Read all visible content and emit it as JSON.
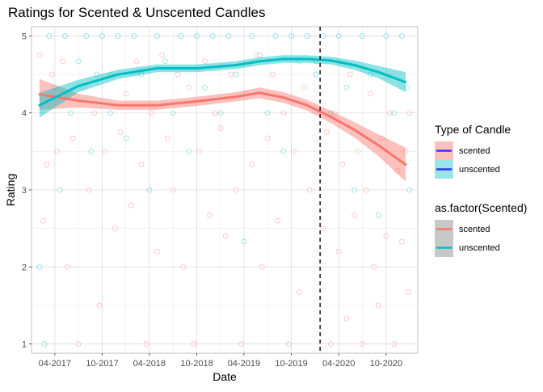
{
  "chart_data": {
    "type": "scatter",
    "title": "Ratings for Scented & Unscented Candles",
    "xlabel": "Date",
    "ylabel": "Rating",
    "x_range": [
      "2017-01-01",
      "2021-01-31"
    ],
    "ylim": [
      0.88,
      5.12
    ],
    "x_ticks": [
      {
        "date": "2017-04-01",
        "label": "04-2017"
      },
      {
        "date": "2017-10-01",
        "label": "10-2017"
      },
      {
        "date": "2018-04-01",
        "label": "04-2018"
      },
      {
        "date": "2018-10-01",
        "label": "10-2018"
      },
      {
        "date": "2019-04-01",
        "label": "04-2019"
      },
      {
        "date": "2019-10-01",
        "label": "10-2019"
      },
      {
        "date": "2020-04-01",
        "label": "04-2020"
      },
      {
        "date": "2020-10-01",
        "label": "10-2020"
      }
    ],
    "y_ticks": [
      1,
      2,
      3,
      4,
      5
    ],
    "grid": true,
    "vline": {
      "date": "2020-01-20",
      "style": "dashed"
    },
    "colors": {
      "scented": "#F8766D",
      "unscented": "#00BFC4",
      "legend_line": "#3333FF"
    },
    "series": [
      {
        "name": "scented",
        "smooth": [
          {
            "date": "2017-02-01",
            "y": 4.24
          },
          {
            "date": "2017-07-01",
            "y": 4.16
          },
          {
            "date": "2017-12-01",
            "y": 4.1
          },
          {
            "date": "2018-05-01",
            "y": 4.1
          },
          {
            "date": "2018-10-01",
            "y": 4.15
          },
          {
            "date": "2019-03-01",
            "y": 4.21
          },
          {
            "date": "2019-06-01",
            "y": 4.26
          },
          {
            "date": "2019-09-01",
            "y": 4.2
          },
          {
            "date": "2019-12-01",
            "y": 4.1
          },
          {
            "date": "2020-03-01",
            "y": 3.95
          },
          {
            "date": "2020-06-01",
            "y": 3.78
          },
          {
            "date": "2020-09-01",
            "y": 3.58
          },
          {
            "date": "2020-12-15",
            "y": 3.33
          }
        ],
        "band_halfwidth": [
          0.2,
          0.09,
          0.06,
          0.06,
          0.06,
          0.06,
          0.07,
          0.07,
          0.07,
          0.08,
          0.1,
          0.14,
          0.22
        ]
      },
      {
        "name": "unscented",
        "smooth": [
          {
            "date": "2017-02-01",
            "y": 4.1
          },
          {
            "date": "2017-07-01",
            "y": 4.35
          },
          {
            "date": "2017-12-01",
            "y": 4.5
          },
          {
            "date": "2018-05-01",
            "y": 4.58
          },
          {
            "date": "2018-10-01",
            "y": 4.58
          },
          {
            "date": "2019-03-01",
            "y": 4.62
          },
          {
            "date": "2019-06-01",
            "y": 4.67
          },
          {
            "date": "2019-09-01",
            "y": 4.7
          },
          {
            "date": "2019-12-01",
            "y": 4.7
          },
          {
            "date": "2020-03-01",
            "y": 4.68
          },
          {
            "date": "2020-06-01",
            "y": 4.62
          },
          {
            "date": "2020-09-01",
            "y": 4.53
          },
          {
            "date": "2020-12-15",
            "y": 4.4
          }
        ],
        "band_halfwidth": [
          0.16,
          0.08,
          0.06,
          0.05,
          0.05,
          0.05,
          0.05,
          0.05,
          0.05,
          0.05,
          0.06,
          0.08,
          0.13
        ]
      }
    ],
    "points": {
      "scented": [
        {
          "date": "2017-02-01",
          "y": 4.75
        },
        {
          "date": "2017-02-15",
          "y": 2.6
        },
        {
          "date": "2017-03-01",
          "y": 3.33
        },
        {
          "date": "2017-03-20",
          "y": 4.5
        },
        {
          "date": "2017-04-10",
          "y": 3.5
        },
        {
          "date": "2017-05-01",
          "y": 4.67
        },
        {
          "date": "2017-05-20",
          "y": 2.0
        },
        {
          "date": "2017-06-10",
          "y": 3.67
        },
        {
          "date": "2017-07-01",
          "y": 1.0
        },
        {
          "date": "2017-07-20",
          "y": 4.33
        },
        {
          "date": "2017-08-10",
          "y": 3.0
        },
        {
          "date": "2017-09-01",
          "y": 4.0
        },
        {
          "date": "2017-09-20",
          "y": 1.5
        },
        {
          "date": "2017-10-10",
          "y": 3.5
        },
        {
          "date": "2017-11-01",
          "y": 4.5
        },
        {
          "date": "2017-11-20",
          "y": 2.5
        },
        {
          "date": "2017-12-10",
          "y": 3.75
        },
        {
          "date": "2018-01-01",
          "y": 4.25
        },
        {
          "date": "2018-01-20",
          "y": 2.8
        },
        {
          "date": "2018-02-10",
          "y": 4.67
        },
        {
          "date": "2018-03-01",
          "y": 3.33
        },
        {
          "date": "2018-03-20",
          "y": 1.0
        },
        {
          "date": "2018-04-10",
          "y": 4.0
        },
        {
          "date": "2018-05-01",
          "y": 2.2
        },
        {
          "date": "2018-05-20",
          "y": 4.75
        },
        {
          "date": "2018-06-10",
          "y": 3.67
        },
        {
          "date": "2018-07-01",
          "y": 3.0
        },
        {
          "date": "2018-07-20",
          "y": 4.5
        },
        {
          "date": "2018-08-10",
          "y": 2.0
        },
        {
          "date": "2018-09-01",
          "y": 4.33
        },
        {
          "date": "2018-09-20",
          "y": 1.0
        },
        {
          "date": "2018-10-10",
          "y": 3.5
        },
        {
          "date": "2018-11-01",
          "y": 4.67
        },
        {
          "date": "2018-11-20",
          "y": 2.67
        },
        {
          "date": "2018-12-10",
          "y": 4.0
        },
        {
          "date": "2019-01-01",
          "y": 3.8
        },
        {
          "date": "2019-01-20",
          "y": 2.4
        },
        {
          "date": "2019-02-10",
          "y": 4.5
        },
        {
          "date": "2019-03-01",
          "y": 3.0
        },
        {
          "date": "2019-03-20",
          "y": 1.0
        },
        {
          "date": "2019-04-10",
          "y": 4.25
        },
        {
          "date": "2019-05-01",
          "y": 3.33
        },
        {
          "date": "2019-05-20",
          "y": 4.75
        },
        {
          "date": "2019-06-10",
          "y": 2.0
        },
        {
          "date": "2019-07-01",
          "y": 3.67
        },
        {
          "date": "2019-07-20",
          "y": 4.5
        },
        {
          "date": "2019-08-10",
          "y": 2.6
        },
        {
          "date": "2019-09-01",
          "y": 4.0
        },
        {
          "date": "2019-09-20",
          "y": 1.0
        },
        {
          "date": "2019-10-10",
          "y": 3.5
        },
        {
          "date": "2019-11-01",
          "y": 1.67
        },
        {
          "date": "2019-11-20",
          "y": 4.33
        },
        {
          "date": "2019-12-10",
          "y": 3.0
        },
        {
          "date": "2020-01-05",
          "y": 4.67
        },
        {
          "date": "2020-02-01",
          "y": 2.5
        },
        {
          "date": "2020-02-15",
          "y": 3.75
        },
        {
          "date": "2020-03-01",
          "y": 1.0
        },
        {
          "date": "2020-03-15",
          "y": 4.0
        },
        {
          "date": "2020-04-01",
          "y": 2.2
        },
        {
          "date": "2020-04-15",
          "y": 3.33
        },
        {
          "date": "2020-05-01",
          "y": 1.33
        },
        {
          "date": "2020-05-15",
          "y": 4.5
        },
        {
          "date": "2020-06-01",
          "y": 2.67
        },
        {
          "date": "2020-06-15",
          "y": 3.5
        },
        {
          "date": "2020-07-01",
          "y": 1.0
        },
        {
          "date": "2020-07-15",
          "y": 3.0
        },
        {
          "date": "2020-08-01",
          "y": 4.25
        },
        {
          "date": "2020-08-15",
          "y": 2.0
        },
        {
          "date": "2020-09-01",
          "y": 1.5
        },
        {
          "date": "2020-09-15",
          "y": 3.67
        },
        {
          "date": "2020-10-01",
          "y": 2.4
        },
        {
          "date": "2020-10-15",
          "y": 4.0
        },
        {
          "date": "2020-11-01",
          "y": 1.0
        },
        {
          "date": "2020-11-15",
          "y": 3.25
        },
        {
          "date": "2020-12-01",
          "y": 2.33
        },
        {
          "date": "2020-12-15",
          "y": 3.5
        },
        {
          "date": "2020-12-25",
          "y": 1.67
        },
        {
          "date": "2020-12-30",
          "y": 4.0
        }
      ],
      "unscented": [
        {
          "date": "2017-02-01",
          "y": 2.0
        },
        {
          "date": "2017-02-20",
          "y": 1.0
        },
        {
          "date": "2017-03-10",
          "y": 5.0
        },
        {
          "date": "2017-04-01",
          "y": 4.33
        },
        {
          "date": "2017-04-20",
          "y": 3.0
        },
        {
          "date": "2017-05-10",
          "y": 5.0
        },
        {
          "date": "2017-06-01",
          "y": 4.0
        },
        {
          "date": "2017-07-01",
          "y": 4.67
        },
        {
          "date": "2017-08-01",
          "y": 5.0
        },
        {
          "date": "2017-08-20",
          "y": 3.5
        },
        {
          "date": "2017-09-10",
          "y": 4.5
        },
        {
          "date": "2017-10-01",
          "y": 5.0
        },
        {
          "date": "2017-11-01",
          "y": 4.0
        },
        {
          "date": "2017-12-01",
          "y": 5.0
        },
        {
          "date": "2018-01-01",
          "y": 3.67
        },
        {
          "date": "2018-02-01",
          "y": 5.0
        },
        {
          "date": "2018-03-01",
          "y": 4.5
        },
        {
          "date": "2018-04-01",
          "y": 3.0
        },
        {
          "date": "2018-05-01",
          "y": 5.0
        },
        {
          "date": "2018-06-01",
          "y": 4.67
        },
        {
          "date": "2018-07-01",
          "y": 4.0
        },
        {
          "date": "2018-08-01",
          "y": 5.0
        },
        {
          "date": "2018-09-01",
          "y": 3.5
        },
        {
          "date": "2018-10-01",
          "y": 5.0
        },
        {
          "date": "2018-11-01",
          "y": 4.33
        },
        {
          "date": "2018-12-01",
          "y": 5.0
        },
        {
          "date": "2019-01-01",
          "y": 4.0
        },
        {
          "date": "2019-02-01",
          "y": 5.0
        },
        {
          "date": "2019-03-01",
          "y": 4.5
        },
        {
          "date": "2019-04-01",
          "y": 2.33
        },
        {
          "date": "2019-05-01",
          "y": 5.0
        },
        {
          "date": "2019-06-01",
          "y": 4.75
        },
        {
          "date": "2019-07-01",
          "y": 4.0
        },
        {
          "date": "2019-08-01",
          "y": 5.0
        },
        {
          "date": "2019-09-01",
          "y": 3.5
        },
        {
          "date": "2019-10-01",
          "y": 5.0
        },
        {
          "date": "2019-11-01",
          "y": 4.67
        },
        {
          "date": "2019-12-01",
          "y": 5.0
        },
        {
          "date": "2020-01-05",
          "y": 4.5
        },
        {
          "date": "2020-02-01",
          "y": 5.0
        },
        {
          "date": "2020-03-01",
          "y": 4.0
        },
        {
          "date": "2020-04-01",
          "y": 5.0
        },
        {
          "date": "2020-05-01",
          "y": 4.33
        },
        {
          "date": "2020-06-01",
          "y": 3.0
        },
        {
          "date": "2020-07-01",
          "y": 5.0
        },
        {
          "date": "2020-08-01",
          "y": 4.5
        },
        {
          "date": "2020-09-01",
          "y": 2.67
        },
        {
          "date": "2020-10-01",
          "y": 5.0
        },
        {
          "date": "2020-11-01",
          "y": 4.0
        },
        {
          "date": "2020-12-01",
          "y": 5.0
        },
        {
          "date": "2020-12-20",
          "y": 4.33
        },
        {
          "date": "2020-12-30",
          "y": 3.0
        }
      ]
    }
  },
  "legend": {
    "title1": "Type of Candle",
    "items1": [
      {
        "label": "scented",
        "band": "#F8766D",
        "line": "#3333FF"
      },
      {
        "label": "unscented",
        "band": "#00BFC4",
        "line": "#3333FF"
      }
    ],
    "title2": "as.factor(Scented)",
    "items2": [
      {
        "label": "scented",
        "line": "#F8766D"
      },
      {
        "label": "unscented",
        "line": "#00BFC4"
      }
    ]
  }
}
